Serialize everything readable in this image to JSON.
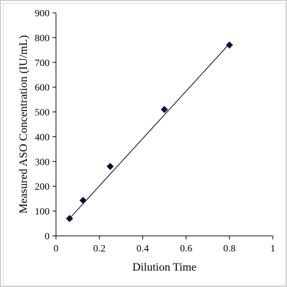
{
  "chart_data": {
    "type": "scatter",
    "title": "",
    "xlabel": "Dilution Time",
    "ylabel": "Measured ASO Concentration (IU/mL)",
    "xlim": [
      0,
      1
    ],
    "ylim": [
      0,
      900
    ],
    "xticks": [
      "0",
      "0.2",
      "0.4",
      "0.6",
      "0.8",
      "1"
    ],
    "yticks": [
      "0",
      "100",
      "200",
      "300",
      "400",
      "500",
      "600",
      "700",
      "800",
      "900"
    ],
    "grid": false,
    "legend": "none",
    "marker": "diamond",
    "marker_color": "#0a0a3c",
    "line_color": "#000000",
    "points": [
      {
        "x": 0.0625,
        "y": 70
      },
      {
        "x": 0.125,
        "y": 143
      },
      {
        "x": 0.25,
        "y": 280
      },
      {
        "x": 0.5,
        "y": 510
      },
      {
        "x": 0.8,
        "y": 770
      }
    ],
    "trendline": {
      "x": [
        0.0625,
        0.8
      ],
      "y": [
        70,
        775
      ]
    }
  }
}
